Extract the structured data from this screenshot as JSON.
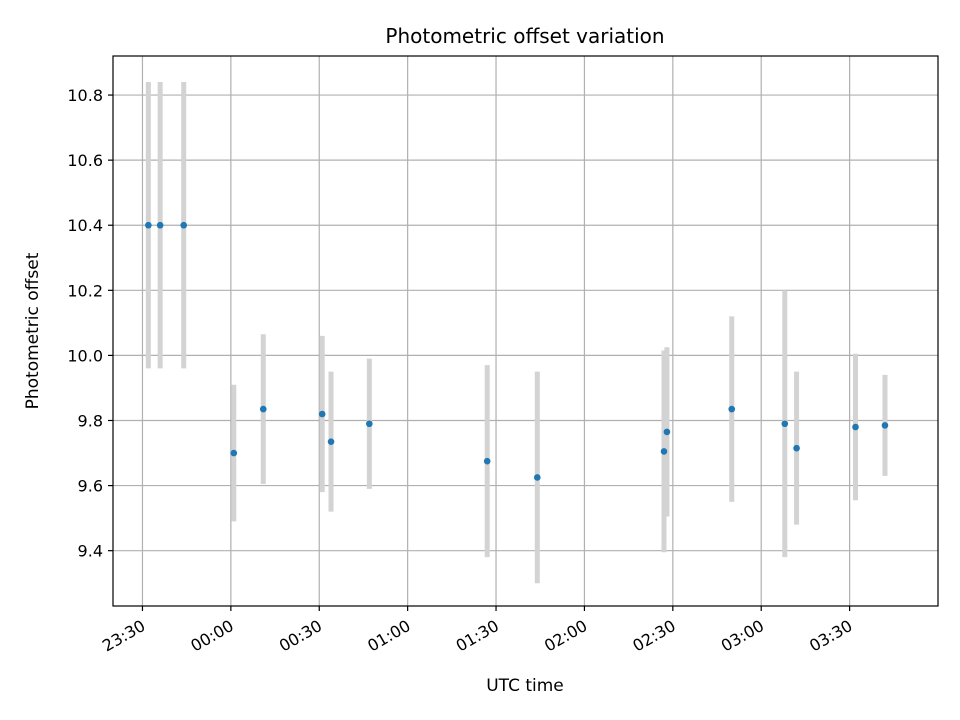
{
  "chart_data": {
    "type": "scatter",
    "title": "Photometric offset variation",
    "xlabel": "UTC time",
    "ylabel": "Photometric offset",
    "grid": true,
    "legend": "none",
    "x_axis_format": "HH:MM",
    "xlim": [
      "23:20",
      "04:00"
    ],
    "ylim": [
      9.23,
      10.92
    ],
    "x_ticks": [
      "23:30",
      "00:00",
      "00:30",
      "01:00",
      "01:30",
      "02:00",
      "02:30",
      "03:00",
      "03:30"
    ],
    "y_ticks": [
      "9.4",
      "9.6",
      "9.8",
      "10.0",
      "10.2",
      "10.4",
      "10.6",
      "10.8"
    ],
    "colors": {
      "marker": "#1f77b4",
      "errorbar": "#d3d3d3",
      "grid": "#b0b0b0"
    },
    "series": [
      {
        "marker": "point",
        "errorbar": "vertical",
        "points": [
          {
            "x": "23:32",
            "y": 10.4,
            "yerr": 0.44
          },
          {
            "x": "23:36",
            "y": 10.4,
            "yerr": 0.44
          },
          {
            "x": "23:44",
            "y": 10.4,
            "yerr": 0.44
          },
          {
            "x": "00:01",
            "y": 9.7,
            "yerr": 0.21
          },
          {
            "x": "00:11",
            "y": 9.835,
            "yerr": 0.23
          },
          {
            "x": "00:31",
            "y": 9.82,
            "yerr": 0.24
          },
          {
            "x": "00:34",
            "y": 9.735,
            "yerr": 0.215
          },
          {
            "x": "00:47",
            "y": 9.79,
            "yerr": 0.2
          },
          {
            "x": "01:27",
            "y": 9.675,
            "yerr": 0.295
          },
          {
            "x": "01:44",
            "y": 9.625,
            "yerr": 0.325
          },
          {
            "x": "02:27",
            "y": 9.705,
            "yerr": 0.31
          },
          {
            "x": "02:28",
            "y": 9.765,
            "yerr": 0.26
          },
          {
            "x": "02:50",
            "y": 9.835,
            "yerr": 0.285
          },
          {
            "x": "03:08",
            "y": 9.79,
            "yerr": 0.41
          },
          {
            "x": "03:12",
            "y": 9.715,
            "yerr": 0.235
          },
          {
            "x": "03:32",
            "y": 9.78,
            "yerr": 0.225
          },
          {
            "x": "03:42",
            "y": 9.785,
            "yerr": 0.155
          }
        ]
      }
    ]
  }
}
